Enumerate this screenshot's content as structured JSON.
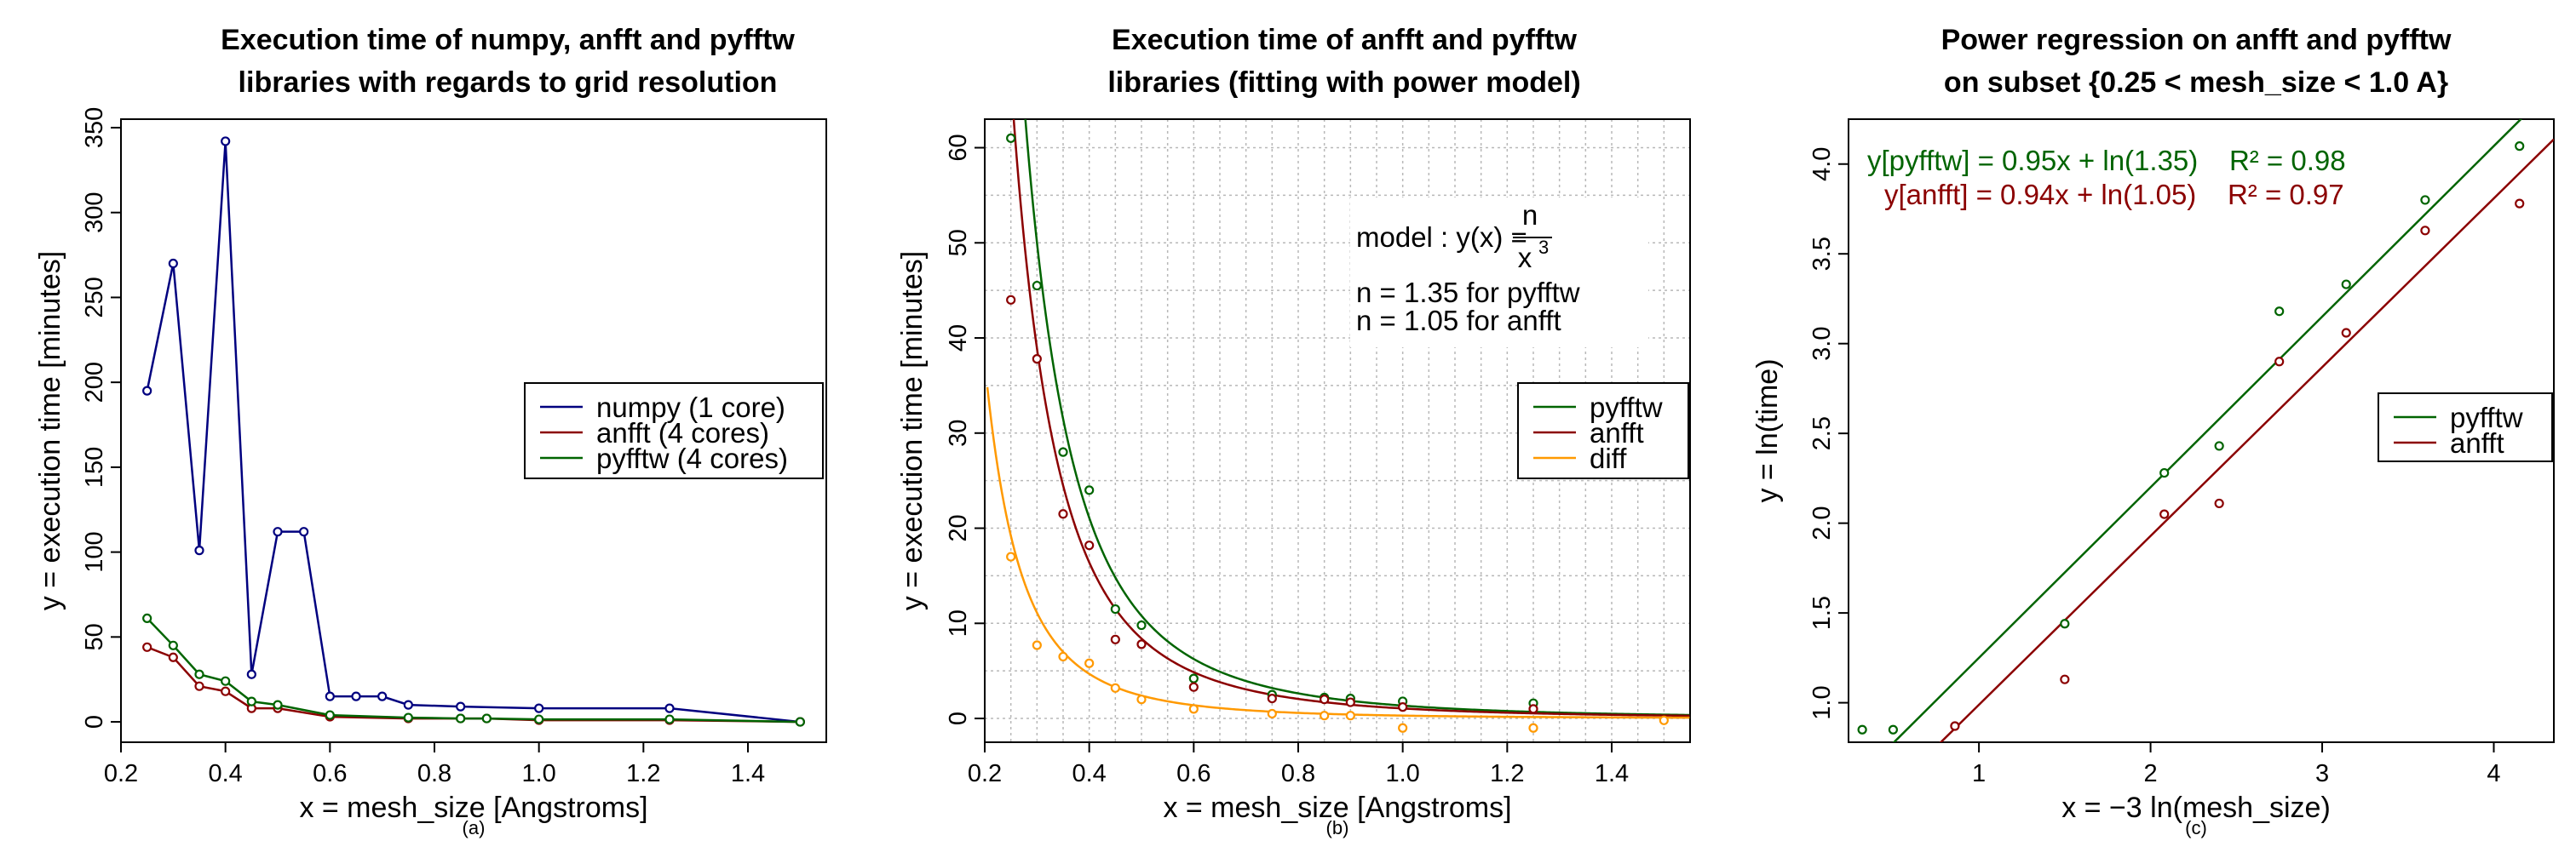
{
  "chart_data": [
    {
      "type": "line",
      "title": [
        "Execution time of numpy, anfft and pyfftw",
        "libraries with regards to grid resolution"
      ],
      "xlabel": "x = mesh_size [Angstroms]",
      "ylabel": "y = execution time [minutes]",
      "sublabel": "(a)",
      "xlim": [
        0.2,
        1.55
      ],
      "ylim": [
        -12,
        355
      ],
      "xticks": [
        0.2,
        0.4,
        0.6,
        0.8,
        1.0,
        1.2,
        1.4
      ],
      "xtick_labels": [
        "0.2",
        "0.4",
        "0.6",
        "0.8",
        "1.0",
        "1.2",
        "1.4"
      ],
      "yticks": [
        0,
        50,
        100,
        150,
        200,
        250,
        300,
        350
      ],
      "ytick_labels": [
        "0",
        "50",
        "100",
        "150",
        "200",
        "250",
        "300",
        "350"
      ],
      "grid": false,
      "legend_position": "center-right",
      "series": [
        {
          "name": "numpy (1 core)",
          "color": "#00007f",
          "x": [
            0.25,
            0.3,
            0.35,
            0.4,
            0.45,
            0.5,
            0.55,
            0.6,
            0.65,
            0.7,
            0.75,
            0.85,
            1.0,
            1.25,
            1.5
          ],
          "y": [
            195,
            270,
            101,
            342,
            28,
            112,
            112,
            15,
            15,
            15,
            10,
            9,
            8,
            8,
            0
          ]
        },
        {
          "name": "anfft (4 cores)",
          "color": "#8b0000",
          "x": [
            0.25,
            0.3,
            0.35,
            0.4,
            0.45,
            0.5,
            0.6,
            0.75,
            0.85,
            0.9,
            1.0,
            1.25,
            1.5
          ],
          "y": [
            44,
            38,
            21,
            18,
            8,
            8,
            3,
            2,
            2,
            2,
            1,
            1,
            0
          ]
        },
        {
          "name": "pyfftw (4 cores)",
          "color": "#006400",
          "x": [
            0.25,
            0.3,
            0.35,
            0.4,
            0.45,
            0.5,
            0.6,
            0.75,
            0.85,
            0.9,
            1.0,
            1.25,
            1.5
          ],
          "y": [
            61,
            45,
            28,
            24,
            12,
            10,
            4,
            2.5,
            2,
            2,
            1.5,
            1.5,
            0
          ]
        }
      ]
    },
    {
      "type": "scatter",
      "title": [
        "Execution time of anfft and pyfftw",
        "libraries (fitting with power model)"
      ],
      "xlabel": "x = mesh_size [Angstroms]",
      "ylabel": "y = execution time [minutes]",
      "sublabel": "(b)",
      "xlim": [
        0.2,
        1.55
      ],
      "ylim": [
        -2.5,
        63
      ],
      "xticks": [
        0.2,
        0.4,
        0.6,
        0.8,
        1.0,
        1.2,
        1.4
      ],
      "xtick_labels": [
        "0.2",
        "0.4",
        "0.6",
        "0.8",
        "1.0",
        "1.2",
        "1.4"
      ],
      "yticks": [
        0,
        10,
        20,
        30,
        40,
        50,
        60
      ],
      "ytick_labels": [
        "0",
        "10",
        "20",
        "30",
        "40",
        "50",
        "60"
      ],
      "grid": true,
      "legend_position": "upper-right",
      "annotation": {
        "model_prefix": "model : y(x) =",
        "numerator": "n",
        "denominator": "x",
        "exponent": "3",
        "line1": "n =  1.35  for pyfftw",
        "line2": "n =  1.05  for anfft"
      },
      "series": [
        {
          "name": "pyfftw",
          "color": "#006400",
          "fit_n": 1.35,
          "x": [
            0.25,
            0.3,
            0.35,
            0.4,
            0.45,
            0.5,
            0.6,
            0.75,
            0.85,
            0.9,
            1.0,
            1.25
          ],
          "y": [
            61,
            45.5,
            28,
            24,
            11.5,
            9.8,
            4.2,
            2.5,
            2.2,
            2.1,
            1.8,
            1.6
          ]
        },
        {
          "name": "anfft",
          "color": "#8b0000",
          "fit_n": 1.05,
          "x": [
            0.25,
            0.3,
            0.35,
            0.4,
            0.45,
            0.5,
            0.6,
            0.75,
            0.85,
            0.9,
            1.0,
            1.25
          ],
          "y": [
            44,
            37.8,
            21.5,
            18.2,
            8.3,
            7.8,
            3.3,
            2.1,
            2.0,
            1.7,
            1.2,
            1.0
          ]
        },
        {
          "name": "diff",
          "color": "#ff9900",
          "x": [
            0.25,
            0.3,
            0.35,
            0.4,
            0.45,
            0.5,
            0.6,
            0.75,
            0.85,
            0.9,
            1.0,
            1.25,
            1.5
          ],
          "y": [
            17,
            7.7,
            6.5,
            5.8,
            3.2,
            2.0,
            1.0,
            0.5,
            0.3,
            0.3,
            -1.0,
            -1.0,
            -0.2
          ]
        }
      ]
    },
    {
      "type": "scatter",
      "title": [
        "Power regression on anfft and pyfftw",
        "on subset {0.25 < mesh_size < 1.0 A}"
      ],
      "xlabel": "x = −3 ln(mesh_size)",
      "ylabel": "y = ln(time)",
      "sublabel": "(c)",
      "xlim": [
        0.24,
        4.35
      ],
      "ylim": [
        0.78,
        4.25
      ],
      "xticks": [
        1,
        2,
        3,
        4
      ],
      "xtick_labels": [
        "1",
        "2",
        "3",
        "4"
      ],
      "yticks": [
        1.0,
        1.5,
        2.0,
        2.5,
        3.0,
        3.5,
        4.0
      ],
      "ytick_labels": [
        "1.0",
        "1.5",
        "2.0",
        "2.5",
        "3.0",
        "3.5",
        "4.0"
      ],
      "grid": false,
      "legend_position": "center-right",
      "equations": [
        {
          "text": "y[pyfftw] = 0.95x + ln(1.35)    R² = 0.98",
          "color": "#006400"
        },
        {
          "text": "y[anfft] = 0.94x + ln(1.05)    R² = 0.97",
          "color": "#8b0000"
        }
      ],
      "series": [
        {
          "name": "pyfftw",
          "color": "#006400",
          "slope": 0.95,
          "intercept_n": 1.35,
          "x": [
            0.32,
            0.5,
            1.5,
            2.08,
            2.4,
            2.75,
            3.14,
            3.6,
            4.15
          ],
          "y": [
            0.85,
            0.85,
            1.44,
            2.28,
            2.43,
            3.18,
            3.33,
            3.8,
            4.1
          ]
        },
        {
          "name": "anfft",
          "color": "#8b0000",
          "slope": 0.94,
          "intercept_n": 1.05,
          "x": [
            0.86,
            1.5,
            2.08,
            2.4,
            2.75,
            3.14,
            3.6,
            4.15
          ],
          "y": [
            0.87,
            1.13,
            2.05,
            2.11,
            2.9,
            3.06,
            3.63,
            3.78
          ]
        }
      ]
    }
  ]
}
